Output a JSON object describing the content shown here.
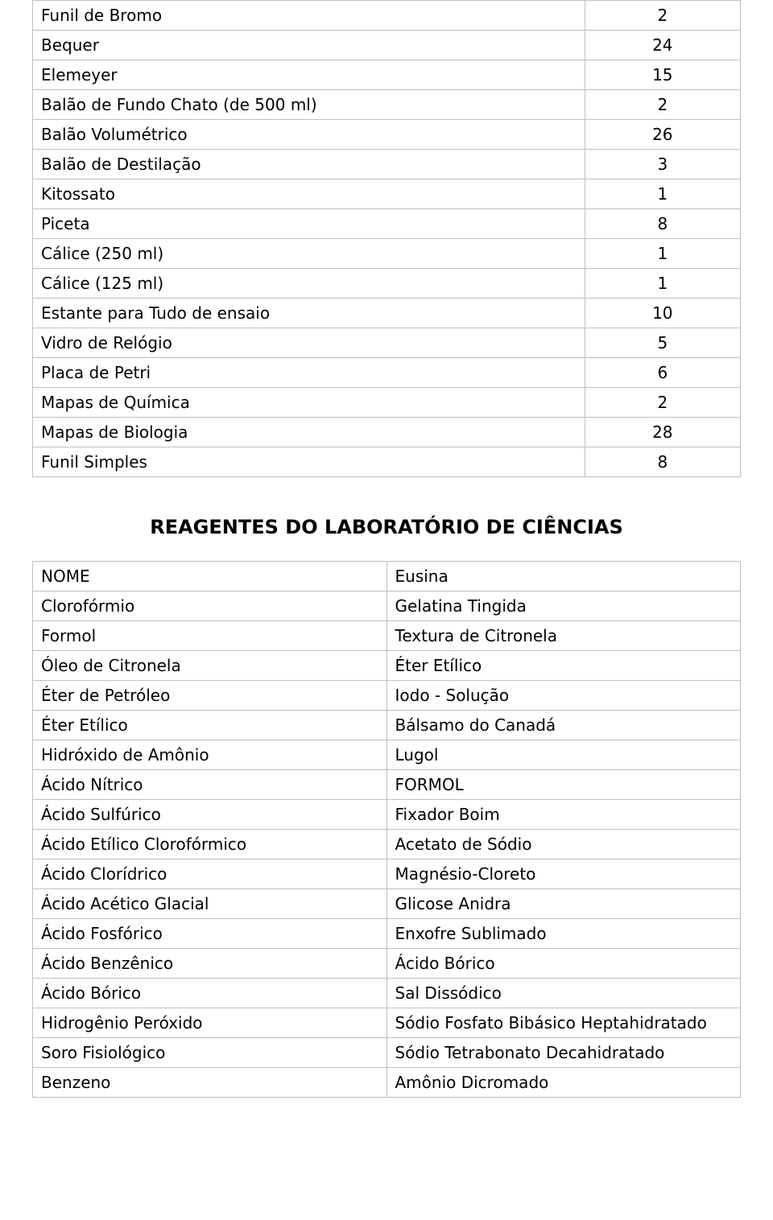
{
  "inventory_table": {
    "border_color": "#bfbfbf",
    "text_color": "#000000",
    "font_size_pt": 15,
    "rows": [
      {
        "name": "Funil de Bromo",
        "qty": "2"
      },
      {
        "name": "Bequer",
        "qty": "24"
      },
      {
        "name": "Elemeyer",
        "qty": "15"
      },
      {
        "name": "Balão de Fundo Chato (de 500 ml)",
        "qty": "2"
      },
      {
        "name": "Balão Volumétrico",
        "qty": "26"
      },
      {
        "name": "Balão de Destilação",
        "qty": "3"
      },
      {
        "name": "Kitossato",
        "qty": "1"
      },
      {
        "name": "Piceta",
        "qty": "8"
      },
      {
        "name": "Cálice (250 ml)",
        "qty": "1"
      },
      {
        "name": "Cálice (125 ml)",
        "qty": "1"
      },
      {
        "name": "Estante para Tudo de ensaio",
        "qty": "10"
      },
      {
        "name": "Vidro de Relógio",
        "qty": "5"
      },
      {
        "name": "Placa de Petri",
        "qty": "6"
      },
      {
        "name": "Mapas de Química",
        "qty": "2"
      },
      {
        "name": "Mapas de Biologia",
        "qty": "28"
      },
      {
        "name": " Funil Simples",
        "qty": "8"
      }
    ]
  },
  "section_title": "REAGENTES DO LABORATÓRIO DE CIÊNCIAS",
  "reagents_table": {
    "border_color": "#bfbfbf",
    "text_color": "#000000",
    "font_size_pt": 15,
    "rows": [
      {
        "left": "NOME",
        "right": "Eusina"
      },
      {
        "left": "Clorofórmio",
        "right": "Gelatina Tingida"
      },
      {
        "left": "Formol",
        "right": "Textura de Citronela"
      },
      {
        "left": "Óleo de Citronela",
        "right": "Éter Etílico"
      },
      {
        "left": "Éter de Petróleo",
        "right": "Iodo - Solução"
      },
      {
        "left": "Éter Etílico",
        "right": "Bálsamo do Canadá"
      },
      {
        "left": "Hidróxido de Amônio",
        "right": "Lugol"
      },
      {
        "left": "Ácido Nítrico",
        "right": "FORMOL"
      },
      {
        "left": "Ácido Sulfúrico",
        "right": "Fixador Boim"
      },
      {
        "left": "Ácido Etílico Clorofórmico",
        "right": "Acetato de Sódio"
      },
      {
        "left": "Ácido Clorídrico",
        "right": "Magnésio-Cloreto"
      },
      {
        "left": "Ácido Acético Glacial",
        "right": "Glicose Anidra"
      },
      {
        "left": "Ácido Fosfórico",
        "right": "Enxofre Sublimado"
      },
      {
        "left": "Ácido Benzênico",
        "right": "Ácido Bórico"
      },
      {
        "left": "Ácido Bórico",
        "right": "Sal Dissódico"
      },
      {
        "left": "Hidrogênio Peróxido",
        "right": "Sódio Fosfato Bibásico Heptahidratado"
      },
      {
        "left": "Soro Fisiológico",
        "right": "Sódio Tetrabonato Decahidratado"
      },
      {
        "left": "Benzeno",
        "right": "Amônio Dicromado"
      }
    ]
  }
}
